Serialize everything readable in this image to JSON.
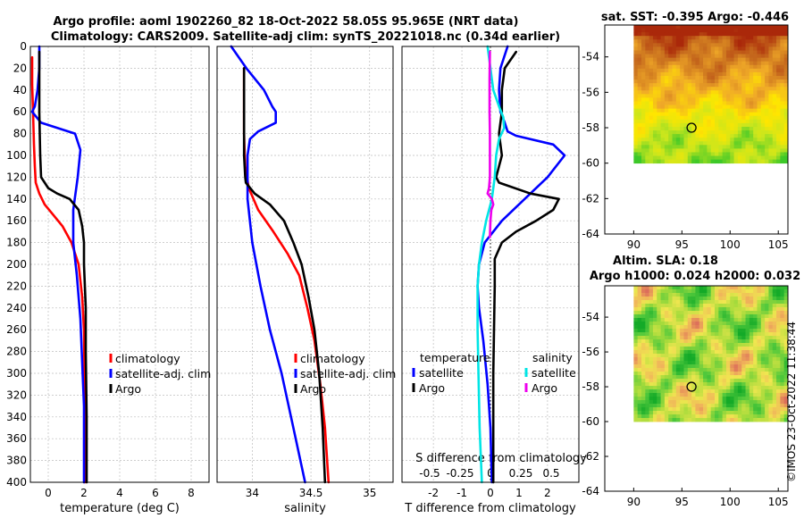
{
  "title_line1": "Argo profile: aoml 1902260_82 18-Oct-2022 58.05S 95.965E (NRT data)",
  "title_line2": "Climatology: CARS2009. Satellite-adj clim: synTS_20221018.nc (0.34d earlier)",
  "watermark": "©IMOS 23-Oct-2022 11:38:44",
  "colors": {
    "climatology": "#ff0000",
    "satellite": "#0000ff",
    "argo": "#000000",
    "sat_salinity": "#00e5e5",
    "argo_salinity": "#ee00ee",
    "grid": "#bdbdbd"
  },
  "chart_data": [
    {
      "type": "line",
      "id": "temperature",
      "xlabel": "temperature (deg C)",
      "ylabel": "",
      "xlim": [
        -1,
        9
      ],
      "ylim": [
        0,
        400
      ],
      "y_inverted": true,
      "xticks": [
        "0",
        "2",
        "4",
        "6",
        "8"
      ],
      "xtick_values": [
        0,
        2,
        4,
        6,
        8
      ],
      "yticks": [
        "0",
        "20",
        "40",
        "60",
        "80",
        "100",
        "120",
        "140",
        "160",
        "180",
        "200",
        "220",
        "240",
        "260",
        "280",
        "300",
        "320",
        "340",
        "360",
        "380",
        "400"
      ],
      "ytick_values": [
        0,
        20,
        40,
        60,
        80,
        100,
        120,
        140,
        160,
        180,
        200,
        220,
        240,
        260,
        280,
        300,
        320,
        340,
        360,
        380,
        400
      ],
      "legend": [
        "climatology",
        "satellite-adj. clim",
        "Argo"
      ],
      "series": [
        {
          "name": "climatology",
          "color": "#ff0000",
          "x": [
            -0.9,
            -0.9,
            -0.85,
            -0.8,
            -0.75,
            -0.7,
            -0.5,
            -0.2,
            0.3,
            0.8,
            1.3,
            1.7,
            1.9,
            2.0,
            2.05,
            2.05
          ],
          "y": [
            10,
            35,
            60,
            90,
            110,
            125,
            135,
            145,
            155,
            165,
            180,
            200,
            230,
            260,
            330,
            400
          ]
        },
        {
          "name": "satellite-adj. clim",
          "color": "#0000ff",
          "x": [
            -0.5,
            -0.5,
            -0.6,
            -0.75,
            -0.9,
            -0.4,
            1.5,
            1.8,
            1.65,
            1.4,
            1.4,
            1.6,
            1.8,
            1.9,
            2.0,
            2.0,
            2.0
          ],
          "y": [
            0,
            20,
            40,
            55,
            60,
            70,
            80,
            95,
            120,
            150,
            180,
            210,
            250,
            290,
            330,
            370,
            400
          ]
        },
        {
          "name": "Argo",
          "color": "#000000",
          "x": [
            -0.5,
            -0.5,
            -0.5,
            -0.45,
            -0.4,
            0.0,
            0.5,
            1.2,
            1.7,
            1.9,
            2.0,
            2.0,
            2.1,
            2.1,
            2.15,
            2.15
          ],
          "y": [
            5,
            30,
            60,
            100,
            120,
            130,
            135,
            140,
            150,
            165,
            180,
            200,
            240,
            280,
            340,
            400
          ]
        }
      ]
    },
    {
      "type": "line",
      "id": "salinity",
      "xlabel": "salinity",
      "xlim": [
        33.7,
        35.2
      ],
      "ylim": [
        0,
        400
      ],
      "y_inverted": true,
      "xticks": [
        "34",
        "34.5",
        "35"
      ],
      "xtick_values": [
        34,
        34.5,
        35
      ],
      "legend": [
        "climatology",
        "satellite-adj. clim",
        "Argo"
      ],
      "series": [
        {
          "name": "climatology",
          "color": "#ff0000",
          "x": [
            33.93,
            33.93,
            33.93,
            33.935,
            33.94,
            33.97,
            34.05,
            34.18,
            34.3,
            34.4,
            34.47,
            34.53,
            34.58,
            34.62,
            34.65
          ],
          "y": [
            20,
            50,
            80,
            100,
            110,
            130,
            150,
            170,
            190,
            210,
            240,
            270,
            310,
            350,
            400
          ]
        },
        {
          "name": "satellite-adj. clim",
          "color": "#0000ff",
          "x": [
            33.82,
            33.95,
            34.1,
            34.17,
            34.2,
            34.2,
            34.05,
            33.98,
            33.96,
            33.96,
            34.0,
            34.07,
            34.15,
            34.25,
            34.35,
            34.45
          ],
          "y": [
            0,
            20,
            40,
            55,
            60,
            70,
            78,
            85,
            100,
            140,
            180,
            220,
            260,
            300,
            350,
            400
          ]
        },
        {
          "name": "Argo",
          "color": "#000000",
          "x": [
            33.93,
            33.93,
            33.93,
            33.94,
            33.945,
            34.02,
            34.15,
            34.27,
            34.35,
            34.42,
            34.48,
            34.53,
            34.57,
            34.6,
            34.62
          ],
          "y": [
            20,
            60,
            100,
            120,
            125,
            135,
            145,
            160,
            180,
            200,
            230,
            260,
            300,
            350,
            400
          ]
        }
      ]
    },
    {
      "type": "line",
      "id": "difference",
      "xlabel": "T difference from climatology",
      "xlabel_top": "S difference from climatology",
      "xlim": [
        -3.1,
        3.1
      ],
      "ylim": [
        0,
        400
      ],
      "y_inverted": true,
      "xticks": [
        "-2",
        "-1",
        "0",
        "1",
        "2"
      ],
      "xtick_values": [
        -2,
        -1,
        0,
        1,
        2
      ],
      "sticks": [
        "-0.5",
        "-0.25",
        "0",
        "0.25",
        "0.5"
      ],
      "stick_values": [
        -0.5,
        -0.25,
        0,
        0.25,
        0.5
      ],
      "legend_temperature_title": "temperature",
      "legend_salinity_title": "salinity",
      "legend": [
        "satellite",
        "Argo",
        "satellite",
        "Argo"
      ],
      "series": [
        {
          "name": "T satellite",
          "color": "#0000ff",
          "x": [
            0.6,
            0.35,
            0.3,
            0.35,
            0.5,
            0.6,
            0.9,
            2.2,
            2.6,
            2.0,
            1.2,
            0.4,
            -0.2,
            -0.4,
            -0.45,
            -0.4,
            -0.25,
            -0.1,
            0.0,
            0.05
          ],
          "y": [
            0,
            20,
            40,
            60,
            70,
            78,
            82,
            90,
            100,
            120,
            140,
            160,
            180,
            200,
            220,
            240,
            270,
            310,
            350,
            400
          ]
        },
        {
          "name": "T Argo",
          "color": "#000000",
          "x": [
            0.9,
            0.5,
            0.4,
            0.4,
            0.3,
            0.4,
            0.3,
            0.2,
            0.3,
            1.4,
            2.4,
            2.2,
            1.6,
            0.9,
            0.4,
            0.15,
            0.15,
            0.1,
            0.1
          ],
          "y": [
            5,
            20,
            40,
            60,
            80,
            100,
            110,
            120,
            125,
            135,
            140,
            150,
            160,
            170,
            180,
            195,
            220,
            300,
            400
          ]
        },
        {
          "name": "S satellite",
          "color": "#00e5e5",
          "x": [
            -0.1,
            0.0,
            0.1,
            0.3,
            0.45,
            0.48,
            0.3,
            0.2,
            0.15,
            0.05,
            -0.15,
            -0.3,
            -0.4,
            -0.45,
            -0.45,
            -0.42,
            -0.38,
            -0.3
          ],
          "y": [
            0,
            20,
            40,
            55,
            65,
            75,
            85,
            100,
            120,
            140,
            160,
            180,
            200,
            220,
            260,
            300,
            350,
            400
          ]
        },
        {
          "name": "S Argo",
          "color": "#ee00ee",
          "x": [
            -0.02,
            -0.03,
            -0.03,
            -0.02,
            -0.02,
            -0.02,
            -0.05,
            -0.1,
            0.05,
            0.1,
            0.03,
            0.0,
            -0.02
          ],
          "y": [
            5,
            30,
            60,
            80,
            100,
            120,
            130,
            135,
            140,
            145,
            150,
            160,
            175
          ]
        }
      ]
    },
    {
      "type": "heatmap",
      "id": "sst_map",
      "title": "sat. SST: -0.395 Argo: -0.446",
      "xlim": [
        87,
        106
      ],
      "ylim": [
        -64,
        -52.2
      ],
      "xticks": [
        "90",
        "95",
        "100",
        "105"
      ],
      "xtick_values": [
        90,
        95,
        100,
        105
      ],
      "yticks": [
        "-54",
        "-56",
        "-58",
        "-60",
        "-62",
        "-64"
      ],
      "ytick_values": [
        -54,
        -56,
        -58,
        -60,
        -62,
        -64
      ],
      "data_extent": {
        "lon": [
          90,
          106
        ],
        "lat": [
          -60,
          -52.2
        ]
      },
      "marker": {
        "lon": 96,
        "lat": -58
      }
    },
    {
      "type": "heatmap",
      "id": "sla_map",
      "title_line1": "Altim. SLA: 0.18",
      "title_line2": "Argo h1000: 0.024 h2000: 0.032",
      "xlim": [
        87,
        106
      ],
      "ylim": [
        -64,
        -52.2
      ],
      "xticks": [
        "90",
        "95",
        "100",
        "105"
      ],
      "xtick_values": [
        90,
        95,
        100,
        105
      ],
      "yticks": [
        "-54",
        "-56",
        "-58",
        "-60",
        "-62",
        "-64"
      ],
      "ytick_values": [
        -54,
        -56,
        -58,
        -60,
        -62,
        -64
      ],
      "data_extent": {
        "lon": [
          90,
          106
        ],
        "lat": [
          -60,
          -52.2
        ]
      },
      "marker": {
        "lon": 96,
        "lat": -58
      }
    }
  ]
}
